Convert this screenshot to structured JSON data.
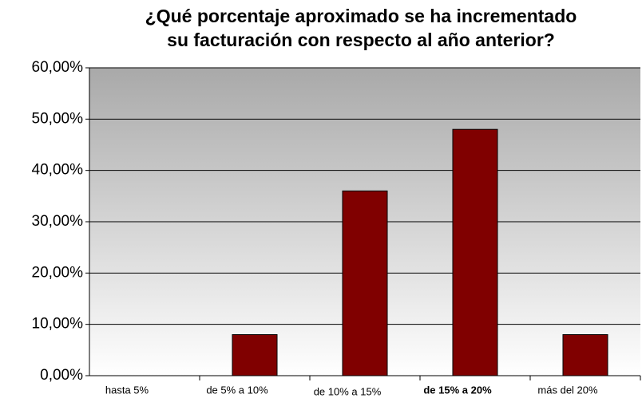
{
  "chart_data": {
    "type": "bar",
    "title": [
      "¿Qué porcentaje aproximado se ha incrementado",
      "su facturación con respecto al año anterior?"
    ],
    "categories": [
      "hasta 5%",
      "de 5% a 10%",
      "de 10% a 15%",
      "de 15% a 20%",
      "más del 20%"
    ],
    "values": [
      0,
      8,
      36,
      48,
      8
    ],
    "color": "#800000",
    "ylim": [
      0,
      60
    ],
    "yticks": [
      {
        "value": 0,
        "label": "0,00%"
      },
      {
        "value": 10,
        "label": "10,00%"
      },
      {
        "value": 20,
        "label": "20,00%"
      },
      {
        "value": 30,
        "label": "30,00%"
      },
      {
        "value": 40,
        "label": "40,00%"
      },
      {
        "value": 50,
        "label": "50,00%"
      },
      {
        "value": 60,
        "label": "60,00%"
      }
    ],
    "grid": true
  }
}
